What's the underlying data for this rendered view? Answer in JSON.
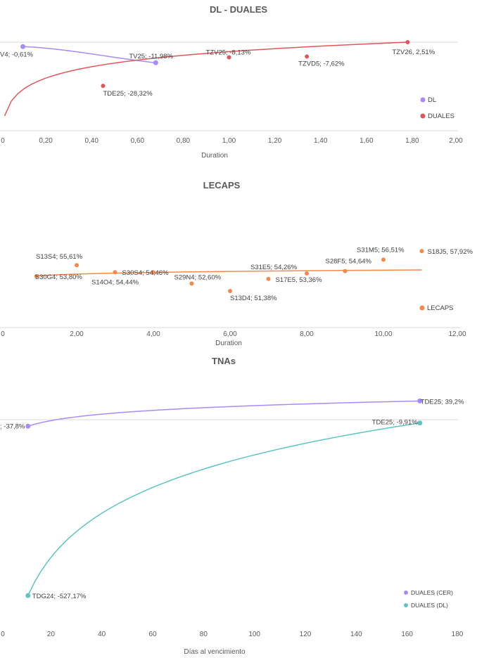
{
  "colors": {
    "dl": "#a78bfa",
    "duales": "#e0565b",
    "lecaps": "#f4894b",
    "duales_cer": "#a78bfa",
    "duales_dl": "#5ec4c4",
    "gridline": "#d9d9d9"
  },
  "chart_data": [
    {
      "type": "scatter",
      "title": "DL - DUALES",
      "xlabel": "Duration",
      "ylabel": "",
      "xlim": [
        0,
        2
      ],
      "x_ticks": [
        "0",
        "0,20",
        "0,40",
        "0,60",
        "0,80",
        "1,00",
        "1,20",
        "1,40",
        "1,60",
        "1,80",
        "2,00"
      ],
      "legend_position": "right",
      "series": [
        {
          "name": "DL",
          "points": [
            {
              "x": 0.1,
              "y": -0.61,
              "label": "V4; -0,61%"
            },
            {
              "x": 0.68,
              "y": -11.98,
              "label": "TV25; -11,98%"
            }
          ]
        },
        {
          "name": "DUALES",
          "points": [
            {
              "x": 0.45,
              "y": -28.32,
              "label": "TDE25; -28,32%"
            },
            {
              "x": 1.0,
              "y": -8.13,
              "label": "TZV25; -8,13%"
            },
            {
              "x": 1.34,
              "y": -7.62,
              "label": "TZVD5; -7,62%"
            },
            {
              "x": 1.78,
              "y": 2.51,
              "label": "TZV26, 2,51%"
            }
          ]
        }
      ]
    },
    {
      "type": "scatter",
      "title": "LECAPS",
      "xlabel": "Duration",
      "ylabel": "",
      "xlim": [
        0,
        12
      ],
      "x_ticks": [
        "0",
        "2,00",
        "4,00",
        "6,00",
        "8,00",
        "10,00",
        "12,00"
      ],
      "legend_position": "bottom-right",
      "series": [
        {
          "name": "LECAPS",
          "points": [
            {
              "x": 0.95,
              "y": 53.8,
              "label": "S30G4; 53,80%"
            },
            {
              "x": 2.0,
              "y": 55.61,
              "label": "S13S4; 55,61%"
            },
            {
              "x": 3.0,
              "y": 54.46,
              "label": "S30S4; 54,46%"
            },
            {
              "x": 4.0,
              "y": 54.44,
              "label": "S14O4; 54,44%"
            },
            {
              "x": 5.0,
              "y": 52.6,
              "label": "S29N4; 52,60%"
            },
            {
              "x": 6.0,
              "y": 51.38,
              "label": "S13D4; 51,38%"
            },
            {
              "x": 7.0,
              "y": 53.36,
              "label": "S17E5, 53,36%"
            },
            {
              "x": 8.0,
              "y": 54.26,
              "label": "S31E5; 54,26%"
            },
            {
              "x": 9.0,
              "y": 54.64,
              "label": "S28F5; 54,64%"
            },
            {
              "x": 10.0,
              "y": 56.51,
              "label": "S31M5; 56,51%"
            },
            {
              "x": 11.0,
              "y": 57.92,
              "label": "S18J5, 57,92%"
            }
          ]
        }
      ]
    },
    {
      "type": "scatter",
      "title": "TNAs",
      "xlabel": "Días al vencimiento",
      "ylabel": "",
      "xlim": [
        0,
        180
      ],
      "x_ticks": [
        "0",
        "20",
        "40",
        "60",
        "80",
        "100",
        "120",
        "140",
        "160",
        "180"
      ],
      "legend_position": "bottom-right",
      "series": [
        {
          "name": "DUALES (CER)",
          "points": [
            {
              "x": 11,
              "y": -37.8,
              "label": "; -37,8%"
            },
            {
              "x": 165,
              "y": 39.2,
              "label": "TDE25; 39,2%"
            }
          ]
        },
        {
          "name": "DUALES (DL)",
          "points": [
            {
              "x": 11,
              "y": -527.17,
              "label": "TDG24; -527,17%"
            },
            {
              "x": 165,
              "y": -9.91,
              "label": "TDE25; -9,91%"
            }
          ]
        }
      ]
    }
  ]
}
